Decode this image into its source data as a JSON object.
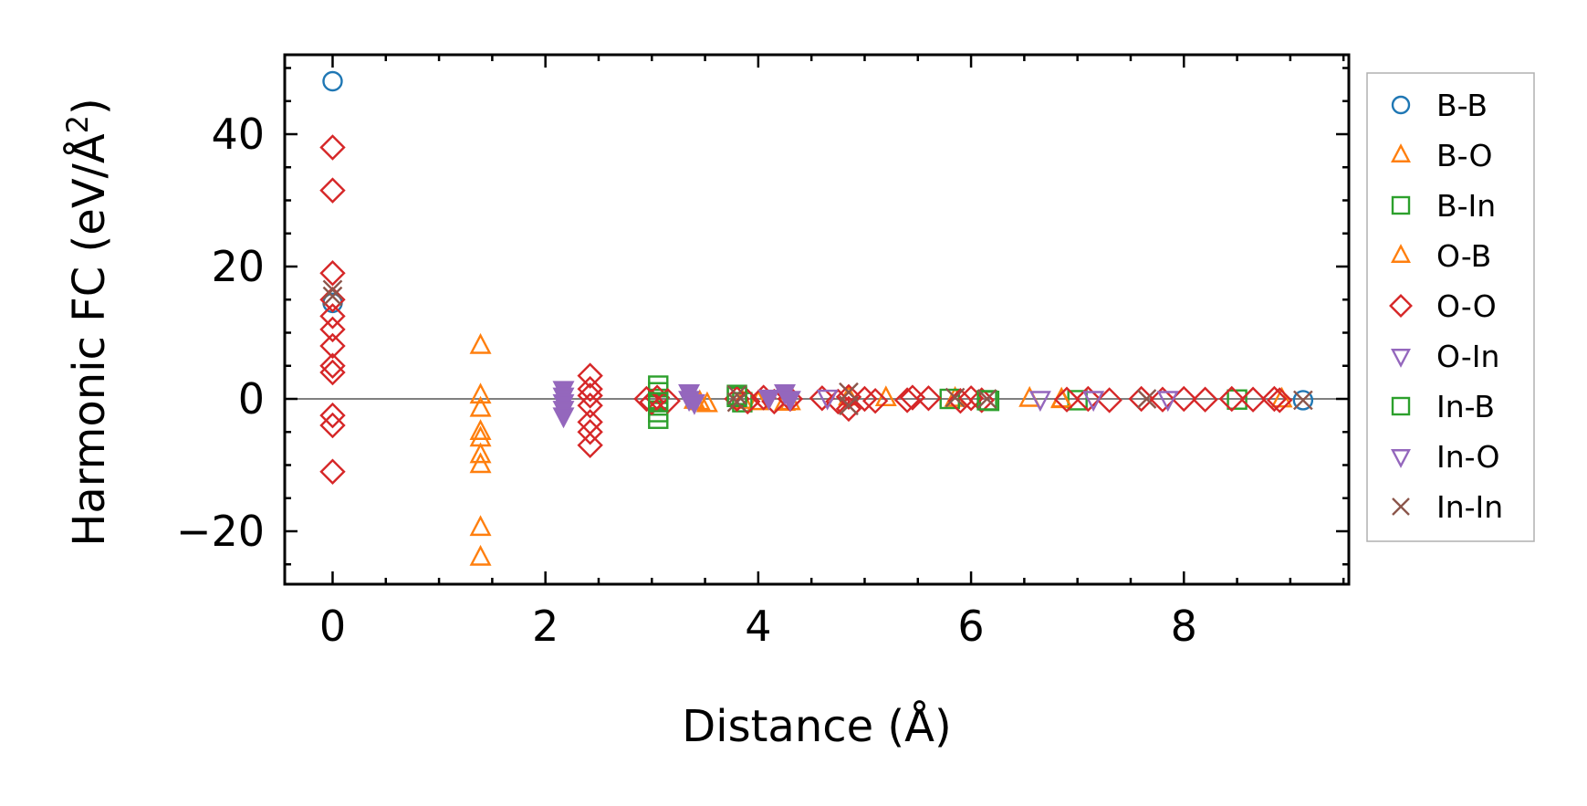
{
  "chart_data": {
    "type": "scatter",
    "title": "",
    "xlabel": "Distance (Å)",
    "ylabel_main": "Harmonic FC (eV/Å",
    "ylabel_sup": "2",
    "ylabel_close": ")",
    "xlim": [
      -0.45,
      9.55
    ],
    "ylim": [
      -28,
      52
    ],
    "xticks": [
      0,
      2,
      4,
      6,
      8
    ],
    "yticks": [
      -20,
      0,
      20,
      40
    ],
    "xtick_labels": [
      "0",
      "2",
      "4",
      "6",
      "8"
    ],
    "ytick_labels": [
      "−20",
      "0",
      "20",
      "40"
    ],
    "reference_line_y": 0,
    "legend_position": "outside-right",
    "series": [
      {
        "name": "B-B",
        "marker": "circle",
        "color": "#1f77b4",
        "filled": false,
        "points": [
          [
            0,
            48
          ],
          [
            0,
            14.5
          ],
          [
            9.12,
            -0.2
          ]
        ]
      },
      {
        "name": "B-O",
        "marker": "triangle-up",
        "color": "#ff7f0e",
        "filled": false,
        "points": [
          [
            1.39,
            8
          ],
          [
            1.39,
            0.5
          ],
          [
            1.39,
            -1.5
          ],
          [
            1.39,
            -5
          ],
          [
            1.39,
            -6
          ],
          [
            1.39,
            -8.5
          ],
          [
            1.39,
            -10
          ],
          [
            1.39,
            -19.5
          ],
          [
            1.39,
            -24
          ],
          [
            3.45,
            -0.5
          ],
          [
            3.52,
            -0.8
          ],
          [
            3.85,
            -0.3
          ],
          [
            4.0,
            -0.5
          ],
          [
            4.3,
            -0.5
          ],
          [
            4.85,
            0.2
          ],
          [
            5.2,
            0.1
          ],
          [
            5.85,
            0
          ],
          [
            6.55,
            0
          ],
          [
            6.85,
            -0.2
          ],
          [
            8.92,
            -0.1
          ]
        ]
      },
      {
        "name": "B-In",
        "marker": "square",
        "color": "#2ca02c",
        "filled": false,
        "points": [
          [
            3.06,
            2
          ],
          [
            3.06,
            1
          ],
          [
            3.06,
            0
          ],
          [
            3.06,
            -1
          ],
          [
            3.06,
            -2
          ],
          [
            3.06,
            -3
          ],
          [
            3.8,
            0.3
          ],
          [
            3.85,
            -0.5
          ],
          [
            5.8,
            0
          ],
          [
            6.17,
            -0.3
          ],
          [
            7.0,
            -0.2
          ],
          [
            8.5,
            -0.1
          ]
        ]
      },
      {
        "name": "O-B",
        "marker": "triangle-up",
        "color": "#ff7f0e",
        "filled": false,
        "points": [
          [
            3.4,
            -0.3
          ],
          [
            4.25,
            -0.6
          ],
          [
            6.85,
            -0.1
          ]
        ]
      },
      {
        "name": "O-O",
        "marker": "diamond",
        "color": "#d62728",
        "filled": false,
        "points": [
          [
            0,
            38
          ],
          [
            0,
            31.5
          ],
          [
            0,
            19
          ],
          [
            0,
            15
          ],
          [
            0,
            12.5
          ],
          [
            0,
            10.5
          ],
          [
            0,
            8
          ],
          [
            0,
            5
          ],
          [
            0,
            4
          ],
          [
            0,
            -2.5
          ],
          [
            0,
            -4
          ],
          [
            0,
            -11
          ],
          [
            2.42,
            3.5
          ],
          [
            2.42,
            1.5
          ],
          [
            2.42,
            0.5
          ],
          [
            2.42,
            -1
          ],
          [
            2.42,
            -3.5
          ],
          [
            2.42,
            -5
          ],
          [
            2.42,
            -7
          ],
          [
            2.95,
            0
          ],
          [
            3.0,
            -0.5
          ],
          [
            3.05,
            0.2
          ],
          [
            3.15,
            -0.3
          ],
          [
            3.8,
            0
          ],
          [
            3.9,
            -0.4
          ],
          [
            4.05,
            0.2
          ],
          [
            4.15,
            -0.4
          ],
          [
            4.3,
            0
          ],
          [
            4.6,
            0.1
          ],
          [
            4.75,
            -0.4
          ],
          [
            4.85,
            0.3
          ],
          [
            4.85,
            -1.5
          ],
          [
            5.0,
            0
          ],
          [
            5.1,
            -0.3
          ],
          [
            5.4,
            -0.2
          ],
          [
            5.45,
            0.2
          ],
          [
            5.6,
            0.1
          ],
          [
            5.9,
            -0.3
          ],
          [
            6.0,
            0.1
          ],
          [
            6.1,
            -0.2
          ],
          [
            6.9,
            -0.1
          ],
          [
            7.1,
            0
          ],
          [
            7.3,
            -0.2
          ],
          [
            7.6,
            0
          ],
          [
            7.8,
            -0.1
          ],
          [
            8.0,
            0
          ],
          [
            8.2,
            -0.1
          ],
          [
            8.45,
            0
          ],
          [
            8.65,
            -0.1
          ],
          [
            8.85,
            0
          ],
          [
            8.9,
            -0.2
          ]
        ]
      },
      {
        "name": "O-In",
        "marker": "triangle-down",
        "color": "#9467bd",
        "filled": false,
        "points": [
          [
            4.65,
            0.2
          ],
          [
            6.65,
            0
          ],
          [
            7.15,
            0
          ],
          [
            7.85,
            0
          ]
        ]
      },
      {
        "name": "In-B",
        "marker": "square",
        "color": "#2ca02c",
        "filled": false,
        "points": [
          [
            3.06,
            -0.5
          ],
          [
            3.8,
            0.6
          ],
          [
            6.15,
            -0.2
          ]
        ]
      },
      {
        "name": "In-O",
        "marker": "triangle-down",
        "color": "#9467bd",
        "filled": true,
        "points": [
          [
            2.17,
            1.5
          ],
          [
            2.17,
            0.5
          ],
          [
            2.17,
            -0.5
          ],
          [
            2.17,
            -1.5
          ],
          [
            2.17,
            -2.5
          ],
          [
            3.35,
            1
          ],
          [
            3.35,
            0
          ],
          [
            3.4,
            -0.5
          ],
          [
            4.1,
            0.2
          ],
          [
            4.25,
            1
          ],
          [
            4.3,
            0
          ]
        ]
      },
      {
        "name": "In-In",
        "marker": "cross",
        "color": "#8c564b",
        "filled": false,
        "points": [
          [
            0,
            15.5
          ],
          [
            0,
            16.5
          ],
          [
            3.8,
            0.6
          ],
          [
            3.8,
            -0.5
          ],
          [
            4.85,
            1
          ],
          [
            4.85,
            -1
          ],
          [
            5.85,
            0.2
          ],
          [
            6.15,
            0
          ],
          [
            7.65,
            0
          ],
          [
            9.12,
            -0.2
          ]
        ]
      }
    ]
  }
}
